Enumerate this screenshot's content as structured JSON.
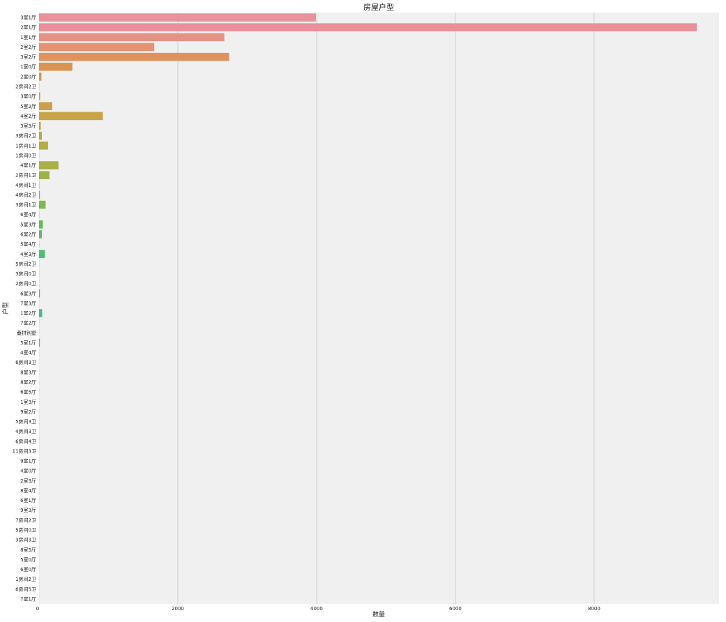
{
  "chart_data": {
    "type": "bar",
    "orientation": "horizontal",
    "title": "房屋户型",
    "xlabel": "数量",
    "ylabel": "户型",
    "xlim": [
      0,
      9800
    ],
    "xticks": [
      0,
      2000,
      4000,
      6000,
      8000
    ],
    "grid": true,
    "background_color": "#f0f0f0",
    "grid_color": "#cfcfcf",
    "categories": [
      "3室1厅",
      "2室1厅",
      "1室1厅",
      "2室2厅",
      "3室2厅",
      "1室0厅",
      "2室0厅",
      "2房间2卫",
      "3室0厅",
      "5室2厅",
      "4室2厅",
      "3室3厅",
      "3房间2卫",
      "1房间1卫",
      "1房间0卫",
      "4室1厅",
      "2房间1卫",
      "4房间1卫",
      "4房间2卫",
      "3房间1卫",
      "6室4厅",
      "5室3厅",
      "6室2厅",
      "5室4厅",
      "4室3厅",
      "5房间2卫",
      "3房间0卫",
      "2房间0卫",
      "6室3厅",
      "7室3厅",
      "1室2厅",
      "7室2厅",
      "叠拼别墅",
      "5室1厅",
      "4室4厅",
      "6房间3卫",
      "8室3厅",
      "8室2厅",
      "6室5厅",
      "1室3厅",
      "9室2厅",
      "5房间3卫",
      "4房间3卫",
      "6房间4卫",
      "11房间3卫",
      "9室1厅",
      "4室0厅",
      "2室3厅",
      "8室4厅",
      "6室1厅",
      "9室3厅",
      "7房间2卫",
      "5房间0卫",
      "3房间3卫",
      "8室5厅",
      "5室0厅",
      "6室0厅",
      "1房间2卫",
      "6房间5卫",
      "7室1厅"
    ],
    "values": [
      3990,
      9480,
      2670,
      1660,
      2740,
      480,
      35,
      3,
      15,
      190,
      920,
      25,
      40,
      130,
      2,
      280,
      150,
      4,
      12,
      95,
      3,
      55,
      40,
      2,
      85,
      2,
      2,
      2,
      12,
      1,
      45,
      2,
      1,
      12,
      2,
      1,
      1,
      1,
      1,
      1,
      1,
      1,
      1,
      1,
      1,
      1,
      1,
      1,
      1,
      1,
      1,
      1,
      1,
      1,
      1,
      1,
      1,
      1,
      1,
      1
    ],
    "bar_colors": [
      "#e8929c",
      "#e8909a",
      "#e39284",
      "#e49272",
      "#e0925e",
      "#db9352",
      "#d7994f",
      "#d39b4f",
      "#cf9f4d",
      "#cba04b",
      "#c8a348",
      "#c2a745",
      "#bda944",
      "#b6ab44",
      "#aeae43",
      "#a6b045",
      "#9db346",
      "#92b649",
      "#87b84c",
      "#7cba4f",
      "#70bb54",
      "#66bd5b",
      "#5cbe62",
      "#56bf6a",
      "#51bf72",
      "#4cbf79",
      "#4bbe81",
      "#4abd88",
      "#4abb8e",
      "#49ba94",
      "#4ab99a",
      "#4ab7a0",
      "#4bb6a6",
      "#4cb5ab",
      "#4db4b1",
      "#4fb2b6",
      "#51b0bb",
      "#55aec1",
      "#58acc6",
      "#5caacb",
      "#61a7cf",
      "#66a4d4",
      "#6da1d8",
      "#749ddc",
      "#7d99e0",
      "#8695e3",
      "#9090e5",
      "#9a8be6",
      "#a487e6",
      "#ae83e5",
      "#b780e3",
      "#bf7ee0",
      "#c67ddd",
      "#cc7cd9",
      "#d17cd4",
      "#d67ccf",
      "#da7dca",
      "#de7fc4",
      "#e181bd",
      "#e384b6"
    ]
  }
}
